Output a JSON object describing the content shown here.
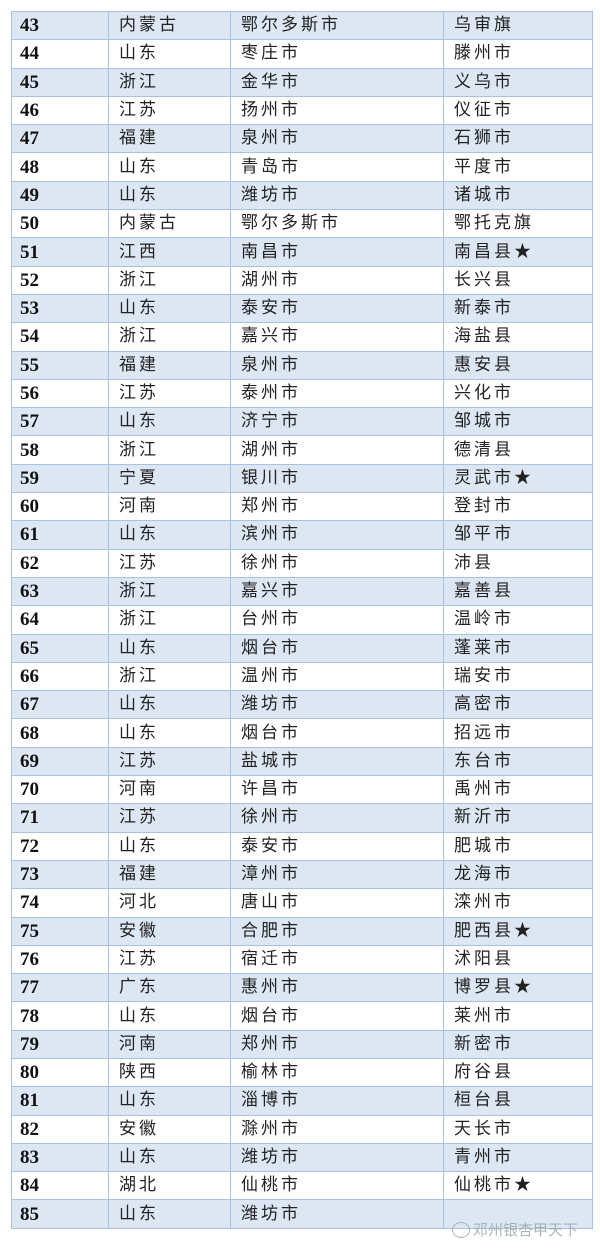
{
  "table": {
    "rows": [
      [
        "43",
        "内蒙古",
        "鄂尔多斯市",
        "乌审旗"
      ],
      [
        "44",
        "山东",
        "枣庄市",
        "滕州市"
      ],
      [
        "45",
        "浙江",
        "金华市",
        "义乌市"
      ],
      [
        "46",
        "江苏",
        "扬州市",
        "仪征市"
      ],
      [
        "47",
        "福建",
        "泉州市",
        "石狮市"
      ],
      [
        "48",
        "山东",
        "青岛市",
        "平度市"
      ],
      [
        "49",
        "山东",
        "潍坊市",
        "诸城市"
      ],
      [
        "50",
        "内蒙古",
        "鄂尔多斯市",
        "鄂托克旗"
      ],
      [
        "51",
        "江西",
        "南昌市",
        "南昌县★"
      ],
      [
        "52",
        "浙江",
        "湖州市",
        "长兴县"
      ],
      [
        "53",
        "山东",
        "泰安市",
        "新泰市"
      ],
      [
        "54",
        "浙江",
        "嘉兴市",
        "海盐县"
      ],
      [
        "55",
        "福建",
        "泉州市",
        "惠安县"
      ],
      [
        "56",
        "江苏",
        "泰州市",
        "兴化市"
      ],
      [
        "57",
        "山东",
        "济宁市",
        "邹城市"
      ],
      [
        "58",
        "浙江",
        "湖州市",
        "德清县"
      ],
      [
        "59",
        "宁夏",
        "银川市",
        "灵武市★"
      ],
      [
        "60",
        "河南",
        "郑州市",
        "登封市"
      ],
      [
        "61",
        "山东",
        "滨州市",
        "邹平市"
      ],
      [
        "62",
        "江苏",
        "徐州市",
        "沛县"
      ],
      [
        "63",
        "浙江",
        "嘉兴市",
        "嘉善县"
      ],
      [
        "64",
        "浙江",
        "台州市",
        "温岭市"
      ],
      [
        "65",
        "山东",
        "烟台市",
        "蓬莱市"
      ],
      [
        "66",
        "浙江",
        "温州市",
        "瑞安市"
      ],
      [
        "67",
        "山东",
        "潍坊市",
        "高密市"
      ],
      [
        "68",
        "山东",
        "烟台市",
        "招远市"
      ],
      [
        "69",
        "江苏",
        "盐城市",
        "东台市"
      ],
      [
        "70",
        "河南",
        "许昌市",
        "禹州市"
      ],
      [
        "71",
        "江苏",
        "徐州市",
        "新沂市"
      ],
      [
        "72",
        "山东",
        "泰安市",
        "肥城市"
      ],
      [
        "73",
        "福建",
        "漳州市",
        "龙海市"
      ],
      [
        "74",
        "河北",
        "唐山市",
        "滦州市"
      ],
      [
        "75",
        "安徽",
        "合肥市",
        "肥西县★"
      ],
      [
        "76",
        "江苏",
        "宿迁市",
        "沭阳县"
      ],
      [
        "77",
        "广东",
        "惠州市",
        "博罗县★"
      ],
      [
        "78",
        "山东",
        "烟台市",
        "莱州市"
      ],
      [
        "79",
        "河南",
        "郑州市",
        "新密市"
      ],
      [
        "80",
        "陕西",
        "榆林市",
        "府谷县"
      ],
      [
        "81",
        "山东",
        "淄博市",
        "桓台县"
      ],
      [
        "82",
        "安徽",
        "滁州市",
        "天长市"
      ],
      [
        "83",
        "山东",
        "潍坊市",
        "青州市"
      ],
      [
        "84",
        "湖北",
        "仙桃市",
        "仙桃市★"
      ],
      [
        "85",
        "山东",
        "潍坊市",
        ""
      ]
    ]
  },
  "watermark": {
    "text": "邓州银杏甲天下",
    "icon": "wechat-icon"
  }
}
